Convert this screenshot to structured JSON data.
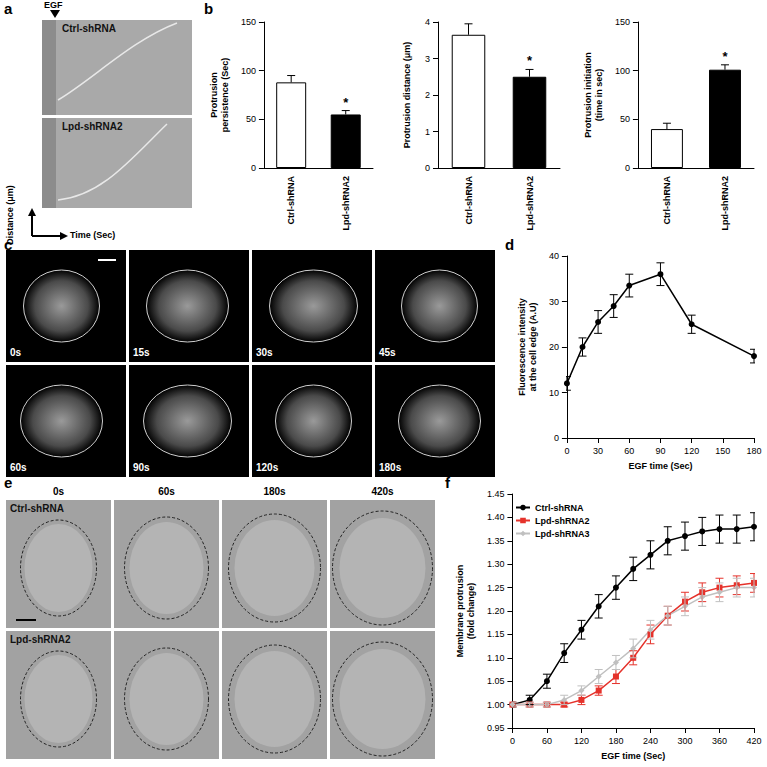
{
  "panels": [
    "a",
    "b",
    "c",
    "d",
    "e",
    "f"
  ],
  "kymograph": {
    "stimulus": "EGF",
    "rows": [
      "Ctrl-shRNA",
      "Lpd-shRNA2"
    ],
    "y_label": "Distance (μm)",
    "x_label": "Time (Sec)"
  },
  "micrographs_c": {
    "times": [
      "0s",
      "15s",
      "30s",
      "45s",
      "60s",
      "90s",
      "120s",
      "180s"
    ]
  },
  "micrographs_e": {
    "times": [
      "0s",
      "60s",
      "180s",
      "420s"
    ],
    "rows": [
      "Ctrl-shRNA",
      "Lpd-shRNA2"
    ]
  },
  "chart_data": [
    {
      "type": "bar",
      "categories": [
        "Ctrl-shRNA",
        "Lpd-shRNA2"
      ],
      "values": [
        88,
        55
      ],
      "errors": [
        7,
        4
      ],
      "colors": [
        "#ffffff",
        "#000000"
      ],
      "y_label": "Protrusion\npersistence (Sec)",
      "ylim": [
        0,
        150
      ],
      "yticks": [
        0,
        50,
        100,
        150
      ],
      "annotations": [
        {
          "category": "Lpd-shRNA2",
          "text": "*"
        }
      ],
      "grid": false
    },
    {
      "type": "bar",
      "categories": [
        "Ctrl-shRNA",
        "Lpd-shRNA2"
      ],
      "values": [
        3.65,
        2.5
      ],
      "errors": [
        0.3,
        0.2
      ],
      "colors": [
        "#ffffff",
        "#000000"
      ],
      "y_label": "Protrusion distance (μm)",
      "ylim": [
        0,
        4
      ],
      "yticks": [
        0,
        1,
        2,
        3,
        4
      ],
      "annotations": [
        {
          "category": "Lpd-shRNA2",
          "text": "*"
        }
      ],
      "grid": false
    },
    {
      "type": "bar",
      "categories": [
        "Ctrl-shRNA",
        "Lpd-shRNA2"
      ],
      "values": [
        40,
        101
      ],
      "errors": [
        6,
        5
      ],
      "colors": [
        "#ffffff",
        "#000000"
      ],
      "y_label": "Protrusion initiation\n(time in sec)",
      "ylim": [
        0,
        150
      ],
      "yticks": [
        0,
        50,
        100,
        150
      ],
      "annotations": [
        {
          "category": "Lpd-shRNA2",
          "text": "*"
        }
      ],
      "grid": false
    },
    {
      "type": "line",
      "x": [
        0,
        15,
        30,
        45,
        60,
        90,
        120,
        180
      ],
      "values": [
        12,
        20,
        25.5,
        29,
        33.5,
        36,
        25,
        18
      ],
      "errors": [
        1.5,
        2,
        2.5,
        2.5,
        2.5,
        2.5,
        2,
        1.5
      ],
      "color": "#000000",
      "marker": "circle",
      "x_label": "EGF time (Sec)",
      "y_label": "Fluorescence intensity\nat the cell edge (A.U)",
      "xlim": [
        0,
        180
      ],
      "xticks": [
        0,
        30,
        60,
        90,
        120,
        150,
        180
      ],
      "ylim": [
        0,
        40
      ],
      "yticks": [
        0,
        10,
        20,
        30,
        40
      ],
      "grid": false
    },
    {
      "type": "line",
      "x": [
        0,
        30,
        60,
        90,
        120,
        150,
        180,
        210,
        240,
        270,
        300,
        330,
        360,
        390,
        420
      ],
      "series": [
        {
          "name": "Ctrl-shRNA",
          "color": "#000000",
          "marker": "circle",
          "values": [
            1.0,
            1.01,
            1.05,
            1.11,
            1.16,
            1.21,
            1.25,
            1.29,
            1.32,
            1.35,
            1.36,
            1.37,
            1.375,
            1.375,
            1.38
          ],
          "errors": [
            0.005,
            0.01,
            0.015,
            0.02,
            0.02,
            0.025,
            0.025,
            0.025,
            0.03,
            0.03,
            0.03,
            0.03,
            0.03,
            0.03,
            0.03
          ]
        },
        {
          "name": "Lpd-shRNA2",
          "color": "#e5322b",
          "marker": "square",
          "values": [
            1.0,
            1.0,
            1.0,
            1.0,
            1.01,
            1.03,
            1.06,
            1.1,
            1.15,
            1.19,
            1.22,
            1.24,
            1.25,
            1.255,
            1.26
          ],
          "errors": [
            0.005,
            0.005,
            0.005,
            0.005,
            0.01,
            0.01,
            0.015,
            0.015,
            0.02,
            0.02,
            0.02,
            0.02,
            0.02,
            0.02,
            0.02
          ]
        },
        {
          "name": "Lpd-shRNA3",
          "color": "#c0c0c0",
          "marker": "diamond",
          "values": [
            1.0,
            1.0,
            1.0,
            1.01,
            1.03,
            1.06,
            1.09,
            1.12,
            1.16,
            1.19,
            1.21,
            1.23,
            1.24,
            1.25,
            1.25
          ],
          "errors": [
            0.005,
            0.005,
            0.005,
            0.01,
            0.01,
            0.015,
            0.015,
            0.02,
            0.02,
            0.02,
            0.02,
            0.02,
            0.02,
            0.02,
            0.02
          ]
        }
      ],
      "x_label": "EGF time (Sec)",
      "y_label": "Membrane protrusion\n(fold change)",
      "xlim": [
        0,
        420
      ],
      "xticks": [
        0,
        60,
        120,
        180,
        240,
        300,
        360,
        420
      ],
      "ylim": [
        0.95,
        1.45
      ],
      "yticks": [
        0.95,
        {
          "value": 1,
          "label": "1.00"
        },
        1.05,
        {
          "value": 1.1,
          "label": "1.10"
        },
        1.15,
        {
          "value": 1.2,
          "label": "1.20"
        },
        1.25,
        {
          "value": 1.3,
          "label": "1.30"
        },
        1.35,
        {
          "value": 1.4,
          "label": "1.40"
        },
        1.45
      ],
      "legend": "top-left",
      "grid": false
    }
  ]
}
